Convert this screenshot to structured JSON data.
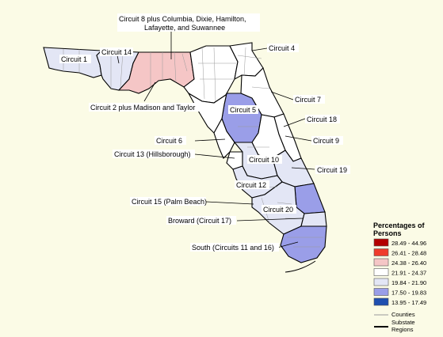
{
  "colors": {
    "background": "#fbfbe6",
    "bin_28_49": "#b30000",
    "bin_26_41": "#ef3b2c",
    "bin_24_38": "#f5c6c6",
    "bin_21_91": "#ffffff",
    "bin_19_84": "#e3e6f5",
    "bin_17_50": "#9a9ee8",
    "bin_13_95": "#1f4fb0"
  },
  "labels": {
    "circuit1": "Circuit 1",
    "circuit14": "Circuit 14",
    "circuit8_line1": "Circuit 8 plus Columbia, Dixie, Hamilton,",
    "circuit8_line2": "Lafayette, and Suwannee",
    "circuit4": "Circuit 4",
    "circuit2": "Circuit 2 plus Madison and Taylor",
    "circuit7": "Circuit 7",
    "circuit5": "Circuit 5",
    "circuit18": "Circuit 18",
    "circuit6": "Circuit 6",
    "circuit9": "Circuit 9",
    "circuit13": "Circuit 13 (Hillsborough)",
    "circuit10": "Circuit 10",
    "circuit19": "Circuit 19",
    "circuit12": "Circuit 12",
    "circuit15": "Circuit 15 (Palm Beach)",
    "circuit20": "Circuit 20",
    "circuit17": "Broward (Circuit 17)",
    "circuit11_16": "South (Circuits 11 and 16)"
  },
  "legend": {
    "title_line1": "Percentages of",
    "title_line2": "Persons",
    "bins": [
      {
        "label": "28.49 - 44.96",
        "color": "#b30000"
      },
      {
        "label": "26.41 - 28.48",
        "color": "#ef3b2c"
      },
      {
        "label": "24.38 - 26.40",
        "color": "#f5c6c6"
      },
      {
        "label": "21.91 - 24.37",
        "color": "#ffffff"
      },
      {
        "label": "19.84 - 21.90",
        "color": "#e3e6f5"
      },
      {
        "label": "17.50 - 19.83",
        "color": "#9a9ee8"
      },
      {
        "label": "13.95 - 17.49",
        "color": "#1f4fb0"
      }
    ],
    "counties_label": "Counties",
    "substate_line1": "Substate",
    "substate_line2": "Regions"
  }
}
